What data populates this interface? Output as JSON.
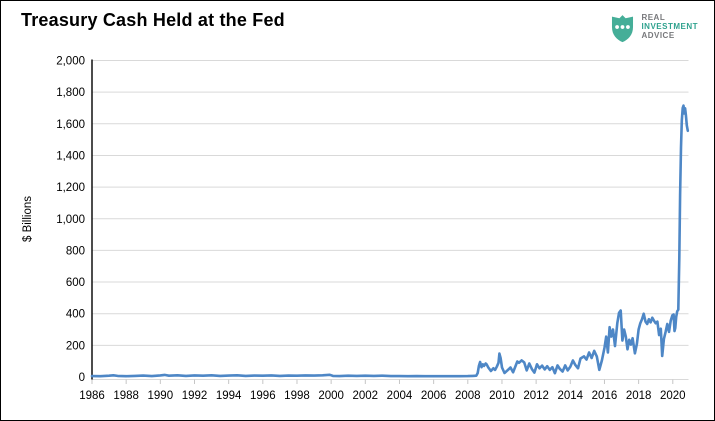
{
  "header": {
    "title": "Treasury Cash Held at the Fed"
  },
  "logo": {
    "line1": "REAL",
    "line2": "INVESTMENT",
    "line3": "ADVICE",
    "shield_color": "#45ae98",
    "dot_color": "#ffffff",
    "text_gray": "#77787b",
    "text_teal": "#2fa28e"
  },
  "chart_data": {
    "type": "line",
    "title": "Treasury Cash Held at the Fed",
    "xlabel": "",
    "ylabel": "$ Billions",
    "xlim": [
      1986,
      2020.92
    ],
    "ylim": [
      0,
      2000
    ],
    "grid": true,
    "legend_position": "none",
    "colors": {
      "line": "#4e87c6",
      "grid": "#d9d9d9",
      "axis": "#000000",
      "tick": "#c6c6c6",
      "label": "#000000"
    },
    "x_ticks": [
      {
        "value": 1986,
        "label": "1986"
      },
      {
        "value": 1988,
        "label": "1988"
      },
      {
        "value": 1990,
        "label": "1990"
      },
      {
        "value": 1992,
        "label": "1992"
      },
      {
        "value": 1994,
        "label": "1994"
      },
      {
        "value": 1996,
        "label": "1996"
      },
      {
        "value": 1998,
        "label": "1998"
      },
      {
        "value": 2000,
        "label": "2000"
      },
      {
        "value": 2002,
        "label": "2002"
      },
      {
        "value": 2004,
        "label": "2004"
      },
      {
        "value": 2006,
        "label": "2006"
      },
      {
        "value": 2008,
        "label": "2008"
      },
      {
        "value": 2010,
        "label": "2010"
      },
      {
        "value": 2012,
        "label": "2012"
      },
      {
        "value": 2014,
        "label": "2014"
      },
      {
        "value": 2016,
        "label": "2016"
      },
      {
        "value": 2018,
        "label": "2018"
      },
      {
        "value": 2020,
        "label": "2020"
      }
    ],
    "y_ticks": [
      {
        "value": 0,
        "label": "0"
      },
      {
        "value": 200,
        "label": "200"
      },
      {
        "value": 400,
        "label": "400"
      },
      {
        "value": 600,
        "label": "600"
      },
      {
        "value": 800,
        "label": "800"
      },
      {
        "value": 1000,
        "label": "1,000"
      },
      {
        "value": 1200,
        "label": "1,200"
      },
      {
        "value": 1400,
        "label": "1,400"
      },
      {
        "value": 1600,
        "label": "1,600"
      },
      {
        "value": 1800,
        "label": "1,800"
      },
      {
        "value": 2000,
        "label": "2,000"
      }
    ],
    "series": [
      {
        "name": "Treasury Cash Held at the Fed ($ Billions)",
        "points": [
          [
            1986.0,
            6
          ],
          [
            1986.5,
            5
          ],
          [
            1987.0,
            8
          ],
          [
            1987.25,
            11
          ],
          [
            1987.5,
            7
          ],
          [
            1988.0,
            5
          ],
          [
            1988.5,
            7
          ],
          [
            1989.0,
            9
          ],
          [
            1989.5,
            6
          ],
          [
            1990.0,
            10
          ],
          [
            1990.25,
            13
          ],
          [
            1990.5,
            8
          ],
          [
            1991.0,
            11
          ],
          [
            1991.5,
            7
          ],
          [
            1992.0,
            10
          ],
          [
            1992.5,
            8
          ],
          [
            1993.0,
            11
          ],
          [
            1993.5,
            7
          ],
          [
            1994.0,
            9
          ],
          [
            1994.5,
            11
          ],
          [
            1995.0,
            7
          ],
          [
            1995.5,
            9
          ],
          [
            1996.0,
            8
          ],
          [
            1996.5,
            10
          ],
          [
            1997.0,
            7
          ],
          [
            1997.5,
            9
          ],
          [
            1998.0,
            8
          ],
          [
            1998.5,
            10
          ],
          [
            1999.0,
            9
          ],
          [
            1999.5,
            11
          ],
          [
            1999.92,
            14
          ],
          [
            2000.1,
            7
          ],
          [
            2000.5,
            6
          ],
          [
            2001.0,
            8
          ],
          [
            2001.5,
            7
          ],
          [
            2002.0,
            8
          ],
          [
            2002.5,
            7
          ],
          [
            2003.0,
            8
          ],
          [
            2003.5,
            6
          ],
          [
            2004.0,
            6
          ],
          [
            2004.5,
            5
          ],
          [
            2005.0,
            6
          ],
          [
            2005.5,
            5
          ],
          [
            2006.0,
            5
          ],
          [
            2006.5,
            5
          ],
          [
            2007.0,
            5
          ],
          [
            2007.5,
            5
          ],
          [
            2008.0,
            6
          ],
          [
            2008.3,
            7
          ],
          [
            2008.5,
            8
          ],
          [
            2008.58,
            25
          ],
          [
            2008.65,
            70
          ],
          [
            2008.72,
            95
          ],
          [
            2008.8,
            62
          ],
          [
            2008.88,
            80
          ],
          [
            2008.95,
            70
          ],
          [
            2009.05,
            85
          ],
          [
            2009.1,
            80
          ],
          [
            2009.2,
            60
          ],
          [
            2009.35,
            38
          ],
          [
            2009.5,
            55
          ],
          [
            2009.6,
            45
          ],
          [
            2009.7,
            65
          ],
          [
            2009.8,
            90
          ],
          [
            2009.85,
            148
          ],
          [
            2009.92,
            120
          ],
          [
            2010.0,
            60
          ],
          [
            2010.15,
            25
          ],
          [
            2010.3,
            40
          ],
          [
            2010.5,
            60
          ],
          [
            2010.65,
            30
          ],
          [
            2010.8,
            70
          ],
          [
            2010.9,
            98
          ],
          [
            2011.0,
            90
          ],
          [
            2011.15,
            105
          ],
          [
            2011.3,
            92
          ],
          [
            2011.45,
            42
          ],
          [
            2011.6,
            85
          ],
          [
            2011.75,
            50
          ],
          [
            2011.9,
            28
          ],
          [
            2012.05,
            80
          ],
          [
            2012.2,
            55
          ],
          [
            2012.35,
            72
          ],
          [
            2012.5,
            48
          ],
          [
            2012.65,
            68
          ],
          [
            2012.8,
            45
          ],
          [
            2012.95,
            62
          ],
          [
            2013.1,
            24
          ],
          [
            2013.25,
            73
          ],
          [
            2013.4,
            50
          ],
          [
            2013.55,
            35
          ],
          [
            2013.7,
            73
          ],
          [
            2013.85,
            42
          ],
          [
            2014.0,
            65
          ],
          [
            2014.15,
            104
          ],
          [
            2014.3,
            75
          ],
          [
            2014.45,
            55
          ],
          [
            2014.6,
            117
          ],
          [
            2014.8,
            130
          ],
          [
            2014.95,
            110
          ],
          [
            2015.1,
            155
          ],
          [
            2015.25,
            120
          ],
          [
            2015.4,
            165
          ],
          [
            2015.55,
            130
          ],
          [
            2015.7,
            45
          ],
          [
            2015.85,
            105
          ],
          [
            2016.0,
            185
          ],
          [
            2016.1,
            255
          ],
          [
            2016.2,
            155
          ],
          [
            2016.3,
            315
          ],
          [
            2016.4,
            255
          ],
          [
            2016.5,
            300
          ],
          [
            2016.62,
            195
          ],
          [
            2016.75,
            340
          ],
          [
            2016.85,
            405
          ],
          [
            2016.95,
            420
          ],
          [
            2017.05,
            230
          ],
          [
            2017.15,
            300
          ],
          [
            2017.25,
            255
          ],
          [
            2017.35,
            175
          ],
          [
            2017.45,
            235
          ],
          [
            2017.55,
            205
          ],
          [
            2017.65,
            245
          ],
          [
            2017.78,
            150
          ],
          [
            2017.9,
            210
          ],
          [
            2018.0,
            300
          ],
          [
            2018.1,
            340
          ],
          [
            2018.2,
            365
          ],
          [
            2018.3,
            400
          ],
          [
            2018.4,
            350
          ],
          [
            2018.5,
            335
          ],
          [
            2018.6,
            365
          ],
          [
            2018.7,
            345
          ],
          [
            2018.8,
            375
          ],
          [
            2018.9,
            355
          ],
          [
            2019.0,
            340
          ],
          [
            2019.1,
            350
          ],
          [
            2019.2,
            265
          ],
          [
            2019.3,
            305
          ],
          [
            2019.38,
            133
          ],
          [
            2019.48,
            240
          ],
          [
            2019.58,
            285
          ],
          [
            2019.68,
            335
          ],
          [
            2019.78,
            285
          ],
          [
            2019.88,
            355
          ],
          [
            2019.98,
            390
          ],
          [
            2020.05,
            395
          ],
          [
            2020.1,
            290
          ],
          [
            2020.15,
            310
          ],
          [
            2020.2,
            380
          ],
          [
            2020.26,
            415
          ],
          [
            2020.32,
            425
          ],
          [
            2020.38,
            750
          ],
          [
            2020.43,
            1150
          ],
          [
            2020.48,
            1450
          ],
          [
            2020.53,
            1620
          ],
          [
            2020.58,
            1700
          ],
          [
            2020.63,
            1715
          ],
          [
            2020.68,
            1665
          ],
          [
            2020.72,
            1698
          ],
          [
            2020.77,
            1655
          ],
          [
            2020.82,
            1590
          ],
          [
            2020.88,
            1556
          ]
        ]
      }
    ]
  }
}
